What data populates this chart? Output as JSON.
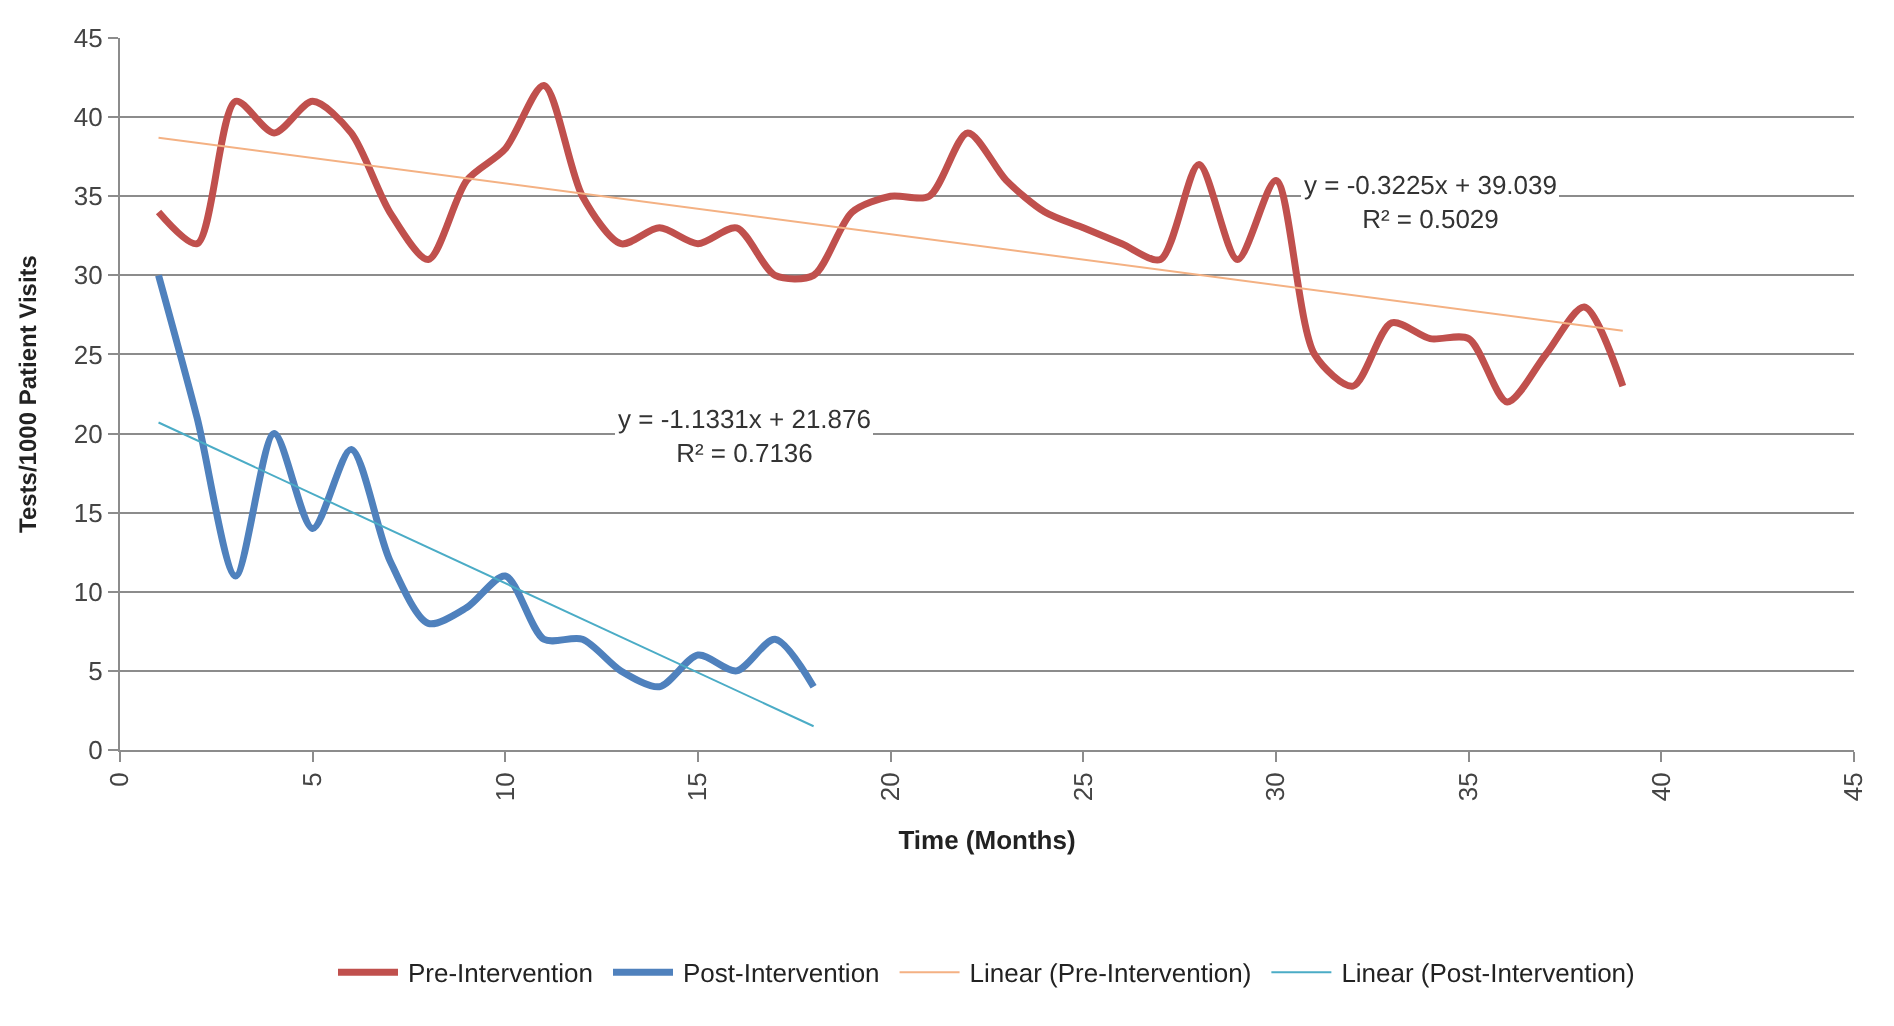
{
  "chart_data": {
    "type": "line",
    "xlabel": "Time (Months)",
    "ylabel": "Tests/1000 Patient Visits",
    "xlim": [
      0,
      45
    ],
    "xticks": [
      0,
      5,
      10,
      15,
      20,
      25,
      30,
      35,
      40,
      45
    ],
    "ylim": [
      0,
      45
    ],
    "yticks": [
      0,
      5,
      10,
      15,
      20,
      25,
      30,
      35,
      40,
      45
    ],
    "grid": "y",
    "legend": "bottom",
    "marker": "none",
    "annotations": [
      "y = -1.1331x + 21.876\nR² = 0.7136",
      "y = -0.3225x + 39.039\nR² = 0.5029"
    ],
    "series": [
      {
        "name": "Pre-Intervention",
        "color": "#c0504d",
        "x": [
          1,
          2,
          3,
          4,
          5,
          6,
          7,
          8,
          9,
          10,
          11,
          12,
          13,
          14,
          15,
          16,
          17,
          18,
          19,
          20,
          21,
          22,
          23,
          24,
          25,
          26,
          27,
          28,
          29,
          30,
          31,
          32,
          33,
          34,
          35,
          36,
          37,
          38,
          39
        ],
        "values": [
          34,
          32,
          41,
          39,
          41,
          39,
          34,
          31,
          36,
          38,
          42,
          35,
          32,
          33,
          32,
          33,
          30,
          30,
          34,
          35,
          35,
          39,
          36,
          34,
          33,
          32,
          31,
          37,
          31,
          36,
          25,
          23,
          27,
          26,
          26,
          22,
          25,
          28,
          23
        ]
      },
      {
        "name": "Post-Intervention",
        "color": "#4f81bd",
        "x": [
          1,
          2,
          3,
          4,
          5,
          6,
          7,
          8,
          9,
          10,
          11,
          12,
          13,
          14,
          15,
          16,
          17,
          18
        ],
        "values": [
          30,
          21,
          11,
          20,
          14,
          19,
          12,
          8,
          9,
          11,
          7,
          7,
          5,
          4,
          6,
          5,
          7,
          4
        ]
      },
      {
        "name": "Linear (Pre-Intervention)",
        "color": "#f4b183",
        "x": [
          1,
          39
        ],
        "values": [
          38.7,
          26.5
        ]
      },
      {
        "name": "Linear (Post-Intervention)",
        "color": "#4bacc6",
        "x": [
          1,
          18
        ],
        "values": [
          20.7,
          1.5
        ]
      }
    ]
  }
}
